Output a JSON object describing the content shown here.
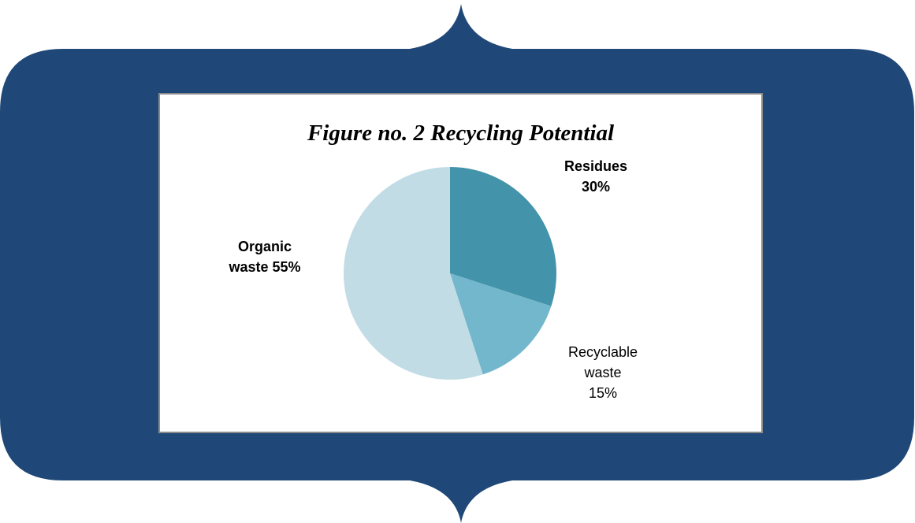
{
  "chart_data": {
    "type": "pie",
    "title": "Figure no. 2 Recycling Potential",
    "slices": [
      {
        "label": "Residues",
        "value": 30,
        "value_label": "30%",
        "color": "#4393aa",
        "bold": true
      },
      {
        "label": "Recyclable waste",
        "value": 15,
        "value_label": "15%",
        "color": "#73b7cc",
        "bold": false
      },
      {
        "label": "Organic waste",
        "value": 55,
        "value_label": "55%",
        "color": "#c2dce5",
        "bold": true
      }
    ]
  },
  "colors": {
    "frame": "#1f4878",
    "panel_border": "#8a8a8a",
    "background": "#ffffff"
  }
}
